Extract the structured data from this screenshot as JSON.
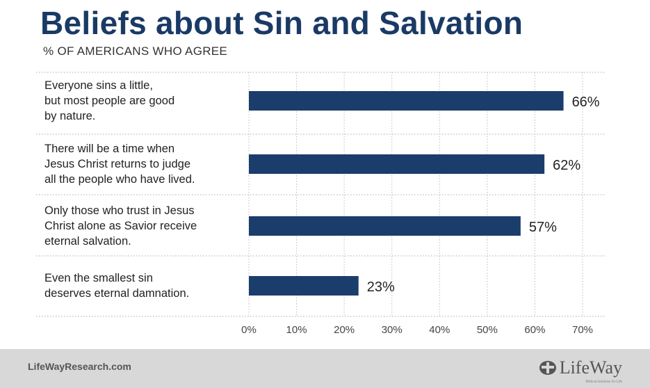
{
  "title": "Beliefs about Sin and Salvation",
  "subtitle": "% OF AMERICANS WHO AGREE",
  "chart_data": {
    "type": "bar",
    "orientation": "horizontal",
    "categories": [
      "Everyone sins a little, but most people are good by nature.",
      "There will be a time when Jesus Christ returns to judge all the people who have lived.",
      "Only those who trust in Jesus Christ alone as Savior receive eternal salvation.",
      "Even the smallest sin deserves eternal damnation."
    ],
    "category_lines": [
      [
        "Everyone sins a little,",
        "but most people are good",
        "by nature."
      ],
      [
        "There will be a time when",
        "Jesus Christ returns to judge",
        "all the people who have lived."
      ],
      [
        "Only those who trust in Jesus",
        "Christ alone as Savior receive",
        "eternal salvation."
      ],
      [
        "Even the smallest sin",
        "deserves eternal damnation."
      ]
    ],
    "values": [
      66,
      62,
      57,
      23
    ],
    "data_labels": [
      "66%",
      "62%",
      "57%",
      "23%"
    ],
    "xlim": [
      0,
      70
    ],
    "x_ticks": [
      0,
      10,
      20,
      30,
      40,
      50,
      60,
      70
    ],
    "x_tick_labels": [
      "0%",
      "10%",
      "20%",
      "30%",
      "40%",
      "50%",
      "60%",
      "70%"
    ],
    "xlabel": "",
    "ylabel": "",
    "grid": "vertical dotted",
    "bar_color": "#1b3d6b",
    "legend": "none"
  },
  "footer": {
    "url": "LifeWayResearch.com",
    "logo_text": "LifeWay",
    "logo_tagline": "Biblical Solutions for Life",
    "logo_icon": "lifeway-cross-logo-icon"
  },
  "colors": {
    "title": "#1a3a66",
    "bar": "#1b3d6b",
    "footer_bg": "#d8d8d8"
  }
}
